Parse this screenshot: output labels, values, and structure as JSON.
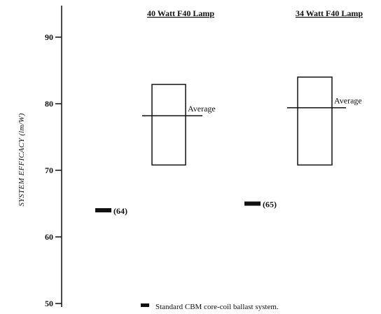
{
  "chart_data": {
    "type": "range-box",
    "ylabel": "SYSTEM EFFICACY (lm/W)",
    "ylim": [
      50,
      95
    ],
    "yticks": [
      50,
      60,
      70,
      80,
      90
    ],
    "groups": [
      {
        "title": "40 Watt F40 Lamp",
        "range_min": 70.8,
        "range_max": 82.9,
        "average": 78.2,
        "average_label": "Average",
        "standard_value": 64,
        "standard_label": "(64)"
      },
      {
        "title": "34 Watt F40 Lamp",
        "range_min": 70.8,
        "range_max": 84.0,
        "average": 79.4,
        "average_label": "Average",
        "standard_value": 65,
        "standard_label": "(65)"
      }
    ],
    "legend": {
      "label": "Standard CBM core-coil ballast system.",
      "marker_color": "#111111"
    }
  }
}
